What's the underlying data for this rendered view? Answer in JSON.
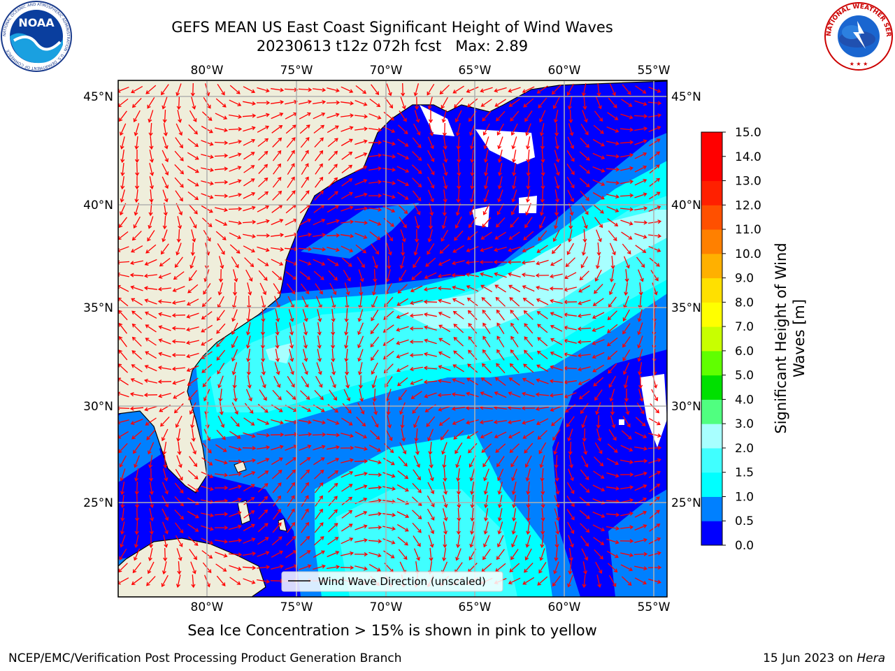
{
  "title": {
    "line1": "GEFS MEAN US East Coast Significant Height of Wind Waves",
    "line2": "20230613 t12z 072h fcst   Max: 2.89"
  },
  "map": {
    "lon_labels": [
      "80°W",
      "75°W",
      "70°W",
      "65°W",
      "60°W",
      "55°W"
    ],
    "lat_labels": [
      "45°N",
      "40°N",
      "35°N",
      "30°N",
      "25°N"
    ],
    "land_color": "#efeedb",
    "legend_label": "Wind Wave Direction (unscaled)",
    "arrow_color": "#ff0000"
  },
  "colorbar": {
    "label_line1": "Significant Height of Wind",
    "label_line2": "Waves [m]",
    "ticks": [
      "0.0",
      "0.5",
      "1.0",
      "1.5",
      "2.0",
      "3.0",
      "4.0",
      "5.0",
      "6.0",
      "7.0",
      "8.0",
      "9.0",
      "10.0",
      "11.0",
      "12.0",
      "13.0",
      "14.0",
      "15.0"
    ],
    "colors": [
      "#0000ff",
      "#0080ff",
      "#00ffff",
      "#40ffff",
      "#a8ffff",
      "#50ff80",
      "#00e000",
      "#60ff00",
      "#c8ff00",
      "#ffff00",
      "#ffe000",
      "#ffb000",
      "#ff8000",
      "#ff5000",
      "#ff2000",
      "#ff0000",
      "#ff0000"
    ]
  },
  "ice_note": "Sea Ice Concentration > 15% is shown in pink to yellow",
  "footer": {
    "left": "NCEP/EMC/Verification Post Processing Product Generation Branch",
    "right_date": "15 Jun 2023 on ",
    "right_host": "Hera"
  },
  "logos": {
    "noaa_text": "NOAA",
    "noaa_ring_text": "NATIONAL OCEANIC AND ATMOSPHERIC ADMINISTRATION · U.S. DEPARTMENT OF COMMERCE",
    "nws_ring_text": "NATIONAL WEATHER SERVICE"
  }
}
